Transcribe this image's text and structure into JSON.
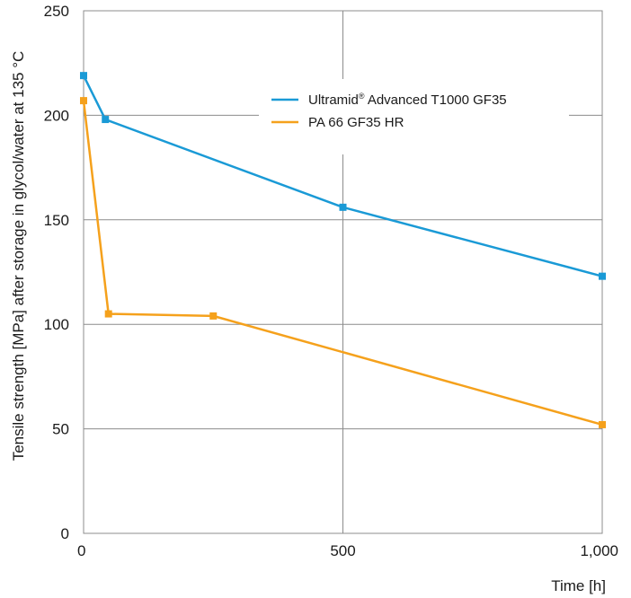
{
  "chart_data": {
    "type": "line",
    "xlabel": "Time [h]",
    "ylabel": "Tensile strength [MPa] after storage in glycol/water at 135 °C",
    "xlim": [
      0,
      1000
    ],
    "ylim": [
      0,
      250
    ],
    "x_ticks": [
      0,
      500,
      1000
    ],
    "x_tick_labels": [
      "0",
      "500",
      "1,000"
    ],
    "y_ticks": [
      0,
      50,
      100,
      150,
      200,
      250
    ],
    "y_tick_labels": [
      "0",
      "50",
      "100",
      "150",
      "200",
      "250"
    ],
    "grid": true,
    "legend_position": "top-right",
    "series": [
      {
        "name_main": "Ultramid",
        "name_sup": "®",
        "name_rest": " Advanced T1000 GF35",
        "color": "#1a9ad6",
        "points": [
          [
            0,
            219
          ],
          [
            42,
            198
          ],
          [
            500,
            156
          ],
          [
            1000,
            123
          ]
        ]
      },
      {
        "name": "PA 66 GF35 HR",
        "color": "#f5a11c",
        "points": [
          [
            0,
            207
          ],
          [
            48,
            105
          ],
          [
            250,
            104
          ],
          [
            1000,
            52
          ]
        ]
      }
    ]
  }
}
